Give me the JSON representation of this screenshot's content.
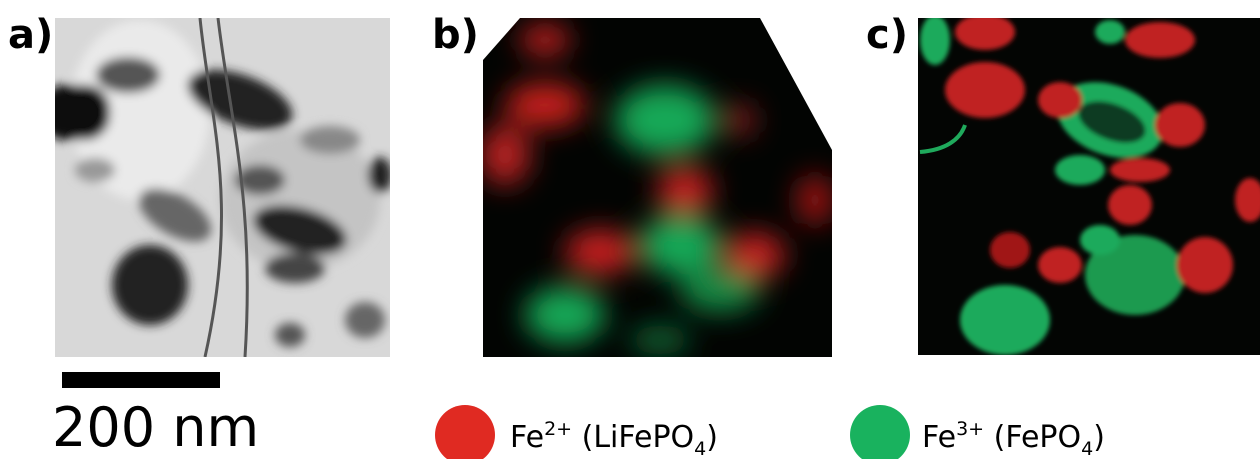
{
  "panels": [
    {
      "label": "a)"
    },
    {
      "label": "b)"
    },
    {
      "label": "c)"
    }
  ],
  "scale_bar": {
    "label": "200 nm"
  },
  "legend": [
    {
      "parts": [
        "Fe",
        "2+",
        " (LiFePO",
        "4",
        ")"
      ]
    },
    {
      "parts": [
        "Fe",
        "3+",
        " (FePO",
        "4",
        ")"
      ]
    }
  ]
}
